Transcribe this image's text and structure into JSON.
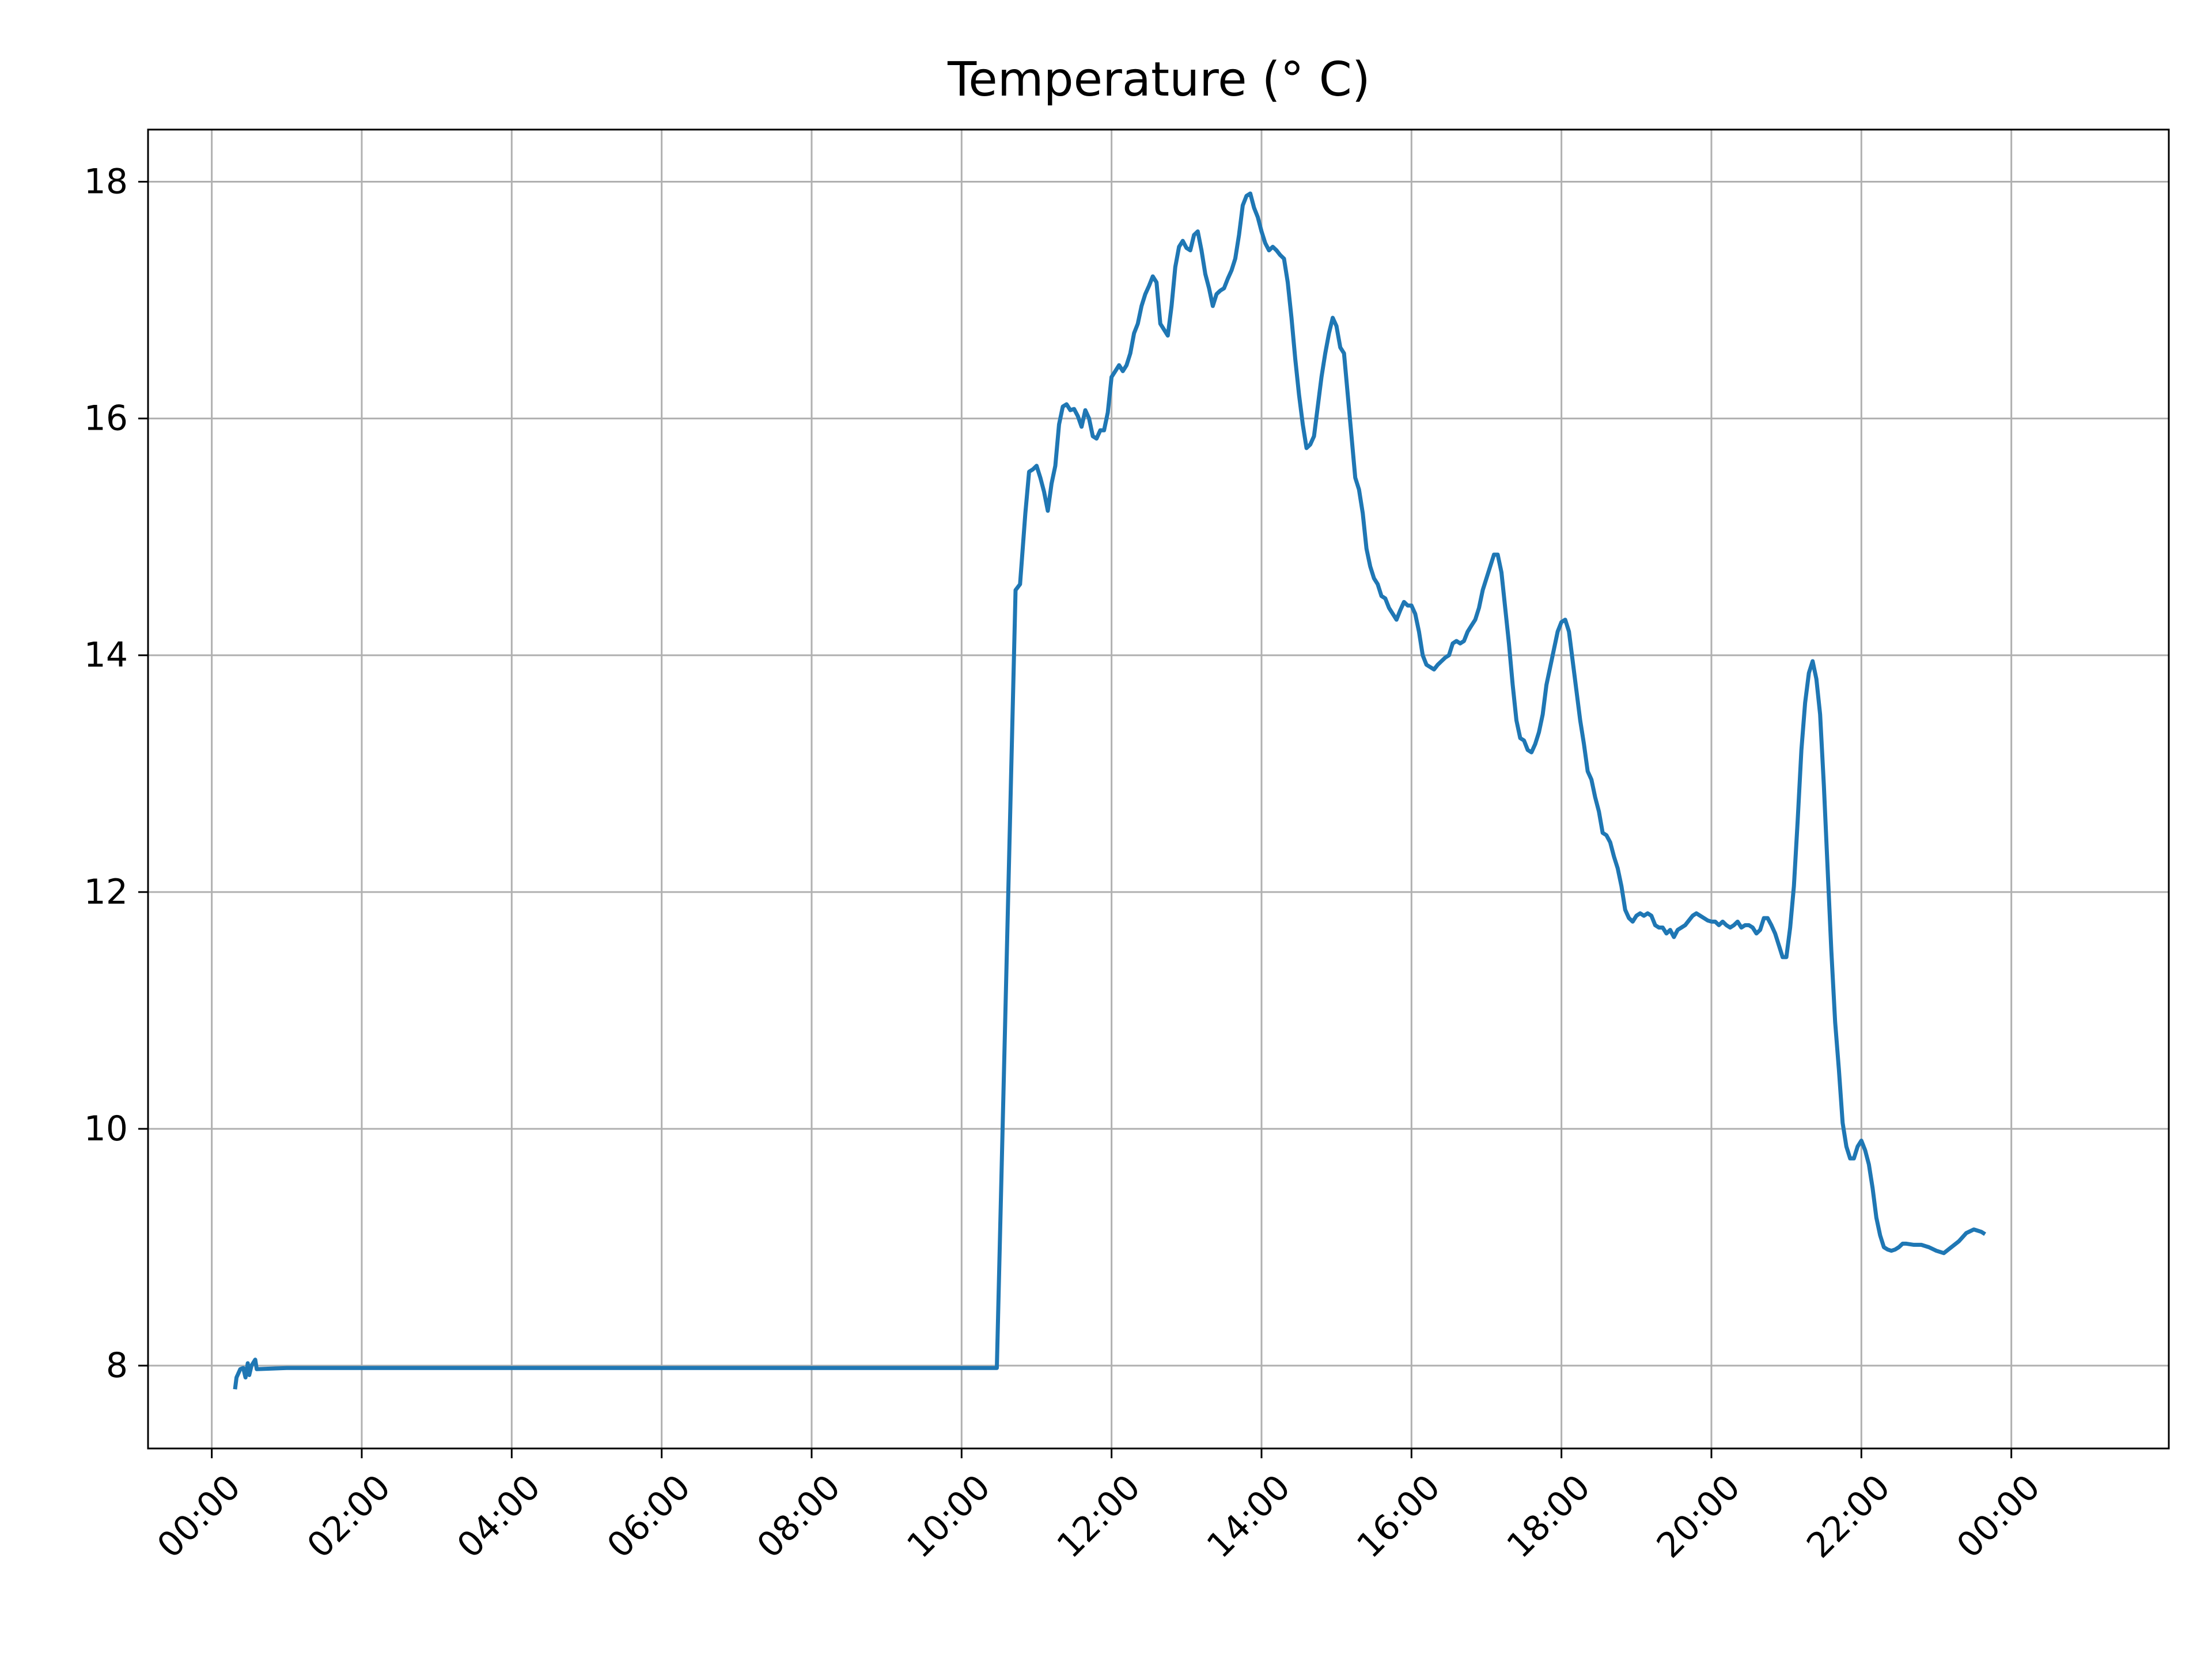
{
  "chart_data": {
    "type": "line",
    "title": "Temperature (° C)",
    "xlabel": "",
    "ylabel": "",
    "x_unit": "hours",
    "xlim": [
      -0.85,
      26.1
    ],
    "ylim": [
      7.3,
      18.44
    ],
    "x_ticks": [
      0,
      2,
      4,
      6,
      8,
      10,
      12,
      14,
      16,
      18,
      20,
      22,
      24
    ],
    "x_tick_labels": [
      "00:00",
      "02:00",
      "04:00",
      "06:00",
      "08:00",
      "10:00",
      "12:00",
      "14:00",
      "16:00",
      "18:00",
      "20:00",
      "22:00",
      "00:00"
    ],
    "y_ticks": [
      8,
      10,
      12,
      14,
      16,
      18
    ],
    "y_tick_labels": [
      "8",
      "10",
      "12",
      "14",
      "16",
      "18"
    ],
    "grid": true,
    "series": [
      {
        "color": "#1f77b4",
        "points": [
          [
            0.31,
            7.8
          ],
          [
            0.33,
            7.9
          ],
          [
            0.38,
            7.97
          ],
          [
            0.42,
            7.98
          ],
          [
            0.45,
            7.9
          ],
          [
            0.48,
            8.02
          ],
          [
            0.5,
            7.92
          ],
          [
            0.53,
            8.0
          ],
          [
            0.58,
            8.05
          ],
          [
            0.6,
            7.97
          ],
          [
            1.0,
            7.98
          ],
          [
            4.0,
            7.98
          ],
          [
            8.0,
            7.98
          ],
          [
            10.47,
            7.98
          ],
          [
            10.72,
            14.55
          ],
          [
            10.78,
            14.6
          ],
          [
            10.85,
            15.2
          ],
          [
            10.9,
            15.55
          ],
          [
            10.95,
            15.57
          ],
          [
            11.0,
            15.6
          ],
          [
            11.05,
            15.5
          ],
          [
            11.1,
            15.38
          ],
          [
            11.15,
            15.22
          ],
          [
            11.2,
            15.45
          ],
          [
            11.25,
            15.6
          ],
          [
            11.3,
            15.95
          ],
          [
            11.35,
            16.1
          ],
          [
            11.4,
            16.12
          ],
          [
            11.45,
            16.07
          ],
          [
            11.5,
            16.08
          ],
          [
            11.55,
            16.02
          ],
          [
            11.6,
            15.93
          ],
          [
            11.65,
            16.07
          ],
          [
            11.7,
            16.0
          ],
          [
            11.75,
            15.85
          ],
          [
            11.8,
            15.83
          ],
          [
            11.85,
            15.9
          ],
          [
            11.9,
            15.9
          ],
          [
            11.95,
            16.05
          ],
          [
            12.0,
            16.35
          ],
          [
            12.05,
            16.4
          ],
          [
            12.1,
            16.45
          ],
          [
            12.15,
            16.4
          ],
          [
            12.2,
            16.45
          ],
          [
            12.25,
            16.55
          ],
          [
            12.3,
            16.72
          ],
          [
            12.35,
            16.8
          ],
          [
            12.4,
            16.95
          ],
          [
            12.45,
            17.05
          ],
          [
            12.5,
            17.12
          ],
          [
            12.55,
            17.2
          ],
          [
            12.6,
            17.15
          ],
          [
            12.65,
            16.8
          ],
          [
            12.7,
            16.75
          ],
          [
            12.75,
            16.7
          ],
          [
            12.8,
            16.95
          ],
          [
            12.85,
            17.28
          ],
          [
            12.9,
            17.45
          ],
          [
            12.95,
            17.5
          ],
          [
            13.0,
            17.44
          ],
          [
            13.05,
            17.42
          ],
          [
            13.1,
            17.55
          ],
          [
            13.15,
            17.58
          ],
          [
            13.2,
            17.42
          ],
          [
            13.25,
            17.22
          ],
          [
            13.3,
            17.1
          ],
          [
            13.35,
            16.95
          ],
          [
            13.4,
            17.05
          ],
          [
            13.45,
            17.08
          ],
          [
            13.5,
            17.1
          ],
          [
            13.55,
            17.18
          ],
          [
            13.6,
            17.25
          ],
          [
            13.65,
            17.35
          ],
          [
            13.7,
            17.55
          ],
          [
            13.75,
            17.8
          ],
          [
            13.8,
            17.88
          ],
          [
            13.85,
            17.9
          ],
          [
            13.9,
            17.78
          ],
          [
            13.95,
            17.7
          ],
          [
            14.0,
            17.58
          ],
          [
            14.05,
            17.48
          ],
          [
            14.1,
            17.42
          ],
          [
            14.15,
            17.45
          ],
          [
            14.2,
            17.42
          ],
          [
            14.25,
            17.38
          ],
          [
            14.3,
            17.35
          ],
          [
            14.35,
            17.15
          ],
          [
            14.4,
            16.85
          ],
          [
            14.45,
            16.5
          ],
          [
            14.5,
            16.2
          ],
          [
            14.55,
            15.95
          ],
          [
            14.6,
            15.75
          ],
          [
            14.65,
            15.78
          ],
          [
            14.7,
            15.85
          ],
          [
            14.75,
            16.1
          ],
          [
            14.8,
            16.35
          ],
          [
            14.85,
            16.55
          ],
          [
            14.9,
            16.72
          ],
          [
            14.95,
            16.85
          ],
          [
            15.0,
            16.78
          ],
          [
            15.05,
            16.6
          ],
          [
            15.1,
            16.55
          ],
          [
            15.15,
            16.2
          ],
          [
            15.2,
            15.85
          ],
          [
            15.25,
            15.5
          ],
          [
            15.3,
            15.4
          ],
          [
            15.35,
            15.2
          ],
          [
            15.4,
            14.9
          ],
          [
            15.45,
            14.75
          ],
          [
            15.5,
            14.65
          ],
          [
            15.55,
            14.6
          ],
          [
            15.6,
            14.5
          ],
          [
            15.65,
            14.48
          ],
          [
            15.7,
            14.4
          ],
          [
            15.75,
            14.35
          ],
          [
            15.8,
            14.3
          ],
          [
            15.85,
            14.38
          ],
          [
            15.9,
            14.45
          ],
          [
            15.95,
            14.42
          ],
          [
            16.0,
            14.42
          ],
          [
            16.05,
            14.35
          ],
          [
            16.1,
            14.2
          ],
          [
            16.15,
            14.0
          ],
          [
            16.2,
            13.92
          ],
          [
            16.25,
            13.9
          ],
          [
            16.3,
            13.88
          ],
          [
            16.35,
            13.92
          ],
          [
            16.4,
            13.95
          ],
          [
            16.45,
            13.98
          ],
          [
            16.5,
            14.0
          ],
          [
            16.55,
            14.1
          ],
          [
            16.6,
            14.12
          ],
          [
            16.65,
            14.1
          ],
          [
            16.7,
            14.12
          ],
          [
            16.75,
            14.2
          ],
          [
            16.8,
            14.25
          ],
          [
            16.85,
            14.3
          ],
          [
            16.9,
            14.4
          ],
          [
            16.95,
            14.55
          ],
          [
            17.0,
            14.65
          ],
          [
            17.05,
            14.75
          ],
          [
            17.1,
            14.85
          ],
          [
            17.15,
            14.85
          ],
          [
            17.2,
            14.7
          ],
          [
            17.25,
            14.4
          ],
          [
            17.3,
            14.1
          ],
          [
            17.35,
            13.75
          ],
          [
            17.4,
            13.45
          ],
          [
            17.45,
            13.3
          ],
          [
            17.5,
            13.28
          ],
          [
            17.55,
            13.2
          ],
          [
            17.6,
            13.18
          ],
          [
            17.65,
            13.25
          ],
          [
            17.7,
            13.35
          ],
          [
            17.75,
            13.5
          ],
          [
            17.8,
            13.75
          ],
          [
            17.85,
            13.9
          ],
          [
            17.9,
            14.05
          ],
          [
            17.95,
            14.2
          ],
          [
            18.0,
            14.28
          ],
          [
            18.05,
            14.3
          ],
          [
            18.1,
            14.2
          ],
          [
            18.15,
            13.95
          ],
          [
            18.2,
            13.7
          ],
          [
            18.25,
            13.45
          ],
          [
            18.3,
            13.25
          ],
          [
            18.35,
            13.02
          ],
          [
            18.4,
            12.95
          ],
          [
            18.45,
            12.8
          ],
          [
            18.5,
            12.68
          ],
          [
            18.55,
            12.5
          ],
          [
            18.6,
            12.48
          ],
          [
            18.65,
            12.42
          ],
          [
            18.7,
            12.3
          ],
          [
            18.75,
            12.2
          ],
          [
            18.8,
            12.05
          ],
          [
            18.85,
            11.85
          ],
          [
            18.9,
            11.78
          ],
          [
            18.95,
            11.75
          ],
          [
            19.0,
            11.8
          ],
          [
            19.05,
            11.82
          ],
          [
            19.1,
            11.8
          ],
          [
            19.15,
            11.82
          ],
          [
            19.2,
            11.8
          ],
          [
            19.25,
            11.72
          ],
          [
            19.3,
            11.7
          ],
          [
            19.35,
            11.7
          ],
          [
            19.4,
            11.65
          ],
          [
            19.45,
            11.68
          ],
          [
            19.5,
            11.62
          ],
          [
            19.55,
            11.68
          ],
          [
            19.6,
            11.7
          ],
          [
            19.65,
            11.72
          ],
          [
            19.7,
            11.76
          ],
          [
            19.75,
            11.8
          ],
          [
            19.8,
            11.82
          ],
          [
            19.85,
            11.8
          ],
          [
            19.9,
            11.78
          ],
          [
            19.95,
            11.76
          ],
          [
            20.0,
            11.75
          ],
          [
            20.05,
            11.75
          ],
          [
            20.1,
            11.72
          ],
          [
            20.15,
            11.75
          ],
          [
            20.2,
            11.72
          ],
          [
            20.25,
            11.7
          ],
          [
            20.3,
            11.72
          ],
          [
            20.35,
            11.75
          ],
          [
            20.4,
            11.7
          ],
          [
            20.45,
            11.72
          ],
          [
            20.5,
            11.72
          ],
          [
            20.55,
            11.7
          ],
          [
            20.6,
            11.65
          ],
          [
            20.65,
            11.68
          ],
          [
            20.7,
            11.78
          ],
          [
            20.75,
            11.78
          ],
          [
            20.8,
            11.72
          ],
          [
            20.85,
            11.65
          ],
          [
            20.9,
            11.55
          ],
          [
            20.95,
            11.45
          ],
          [
            21.0,
            11.45
          ],
          [
            21.05,
            11.7
          ],
          [
            21.1,
            12.05
          ],
          [
            21.15,
            12.6
          ],
          [
            21.2,
            13.2
          ],
          [
            21.25,
            13.6
          ],
          [
            21.3,
            13.85
          ],
          [
            21.35,
            13.95
          ],
          [
            21.4,
            13.8
          ],
          [
            21.45,
            13.5
          ],
          [
            21.5,
            12.9
          ],
          [
            21.55,
            12.2
          ],
          [
            21.6,
            11.5
          ],
          [
            21.65,
            10.9
          ],
          [
            21.7,
            10.5
          ],
          [
            21.75,
            10.05
          ],
          [
            21.8,
            9.85
          ],
          [
            21.85,
            9.75
          ],
          [
            21.9,
            9.75
          ],
          [
            21.95,
            9.85
          ],
          [
            22.0,
            9.9
          ],
          [
            22.05,
            9.82
          ],
          [
            22.1,
            9.7
          ],
          [
            22.15,
            9.5
          ],
          [
            22.2,
            9.25
          ],
          [
            22.25,
            9.1
          ],
          [
            22.3,
            9.0
          ],
          [
            22.35,
            8.98
          ],
          [
            22.4,
            8.97
          ],
          [
            22.45,
            8.98
          ],
          [
            22.5,
            9.0
          ],
          [
            22.55,
            9.03
          ],
          [
            22.6,
            9.03
          ],
          [
            22.7,
            9.02
          ],
          [
            22.8,
            9.02
          ],
          [
            22.9,
            9.0
          ],
          [
            23.0,
            8.97
          ],
          [
            23.1,
            8.95
          ],
          [
            23.2,
            9.0
          ],
          [
            23.3,
            9.05
          ],
          [
            23.4,
            9.12
          ],
          [
            23.5,
            9.15
          ],
          [
            23.6,
            9.13
          ],
          [
            23.65,
            9.11
          ]
        ]
      }
    ]
  }
}
